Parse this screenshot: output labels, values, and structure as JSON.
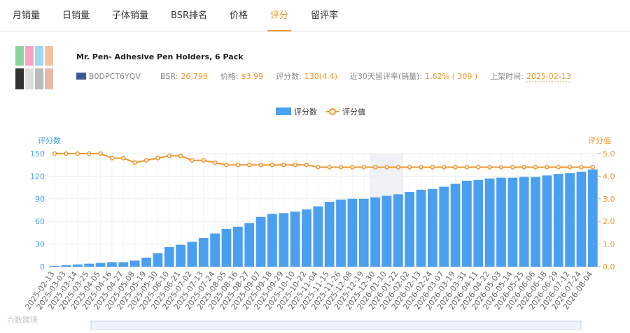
{
  "tabs": [
    "月销量",
    "日销量",
    "子体销量",
    "BSR排名",
    "价格",
    "评分",
    "留评率"
  ],
  "active_tab": 5,
  "product": {
    "title": "Mr. Pen- Adhesive Pen Holders, 6 Pack",
    "asin": "B0DPCT6YQV",
    "fields": [
      {
        "label": "BSR:",
        "value": "26,798"
      },
      {
        "label": "价格:",
        "value": "$3.99"
      },
      {
        "label": "评分数:",
        "value": "130(4.4)"
      },
      {
        "label": "近30天留评率(销量):",
        "value": "1.62% ( 309 )"
      },
      {
        "label": "上架时间:",
        "value": "2025-02-13"
      }
    ]
  },
  "watermark": "六数跨境",
  "chart_data": {
    "type": "bar-line",
    "ylabel": "评分数",
    "y2label": "评分值",
    "ylim": [
      0,
      150
    ],
    "yticks": [
      0,
      30,
      60,
      90,
      120,
      150
    ],
    "y2lim": [
      0,
      5
    ],
    "y2ticks": [
      {
        "value": 0,
        "label": "0.0"
      },
      {
        "value": 1,
        "label": "1.0"
      },
      {
        "value": 2,
        "label": "2.0"
      },
      {
        "value": 3,
        "label": "3.0"
      },
      {
        "value": 4,
        "label": "4.0"
      },
      {
        "value": 5,
        "label": "5.0"
      }
    ],
    "grid": true,
    "categories": [
      "2025-02-13",
      "2025-03-03",
      "2025-03-14",
      "2025-03-25",
      "2025-04-05",
      "2025-04-16",
      "2025-04-27",
      "2025-05-08",
      "2025-05-19",
      "2025-05-30",
      "2025-06-10",
      "2025-06-21",
      "2025-07-02",
      "2025-07-13",
      "2025-07-24",
      "2025-08-05",
      "2025-08-16",
      "2025-08-27",
      "2025-09-07",
      "2025-09-18",
      "2025-09-29",
      "2025-10-10",
      "2025-10-22",
      "2025-11-04",
      "2025-11-15",
      "2025-11-26",
      "2025-12-08",
      "2025-12-19",
      "2025-12-30",
      "2026-01-10",
      "2026-01-22",
      "2026-02-02",
      "2026-02-13",
      "2026-02-24",
      "2026-03-07",
      "2026-03-19",
      "2026-03-31",
      "2026-04-11",
      "2026-04-22",
      "2026-05-03",
      "2026-05-14",
      "2026-05-25",
      "2026-06-06",
      "2026-06-18",
      "2026-06-29",
      "2026-07-12",
      "2026-07-24",
      "2026-08-04"
    ],
    "series": [
      {
        "name": "评分数",
        "color": "#4a9ff0",
        "kind": "bar",
        "values": [
          1,
          2,
          3,
          4,
          5,
          6,
          6,
          8,
          12,
          18,
          26,
          29,
          33,
          38,
          44,
          50,
          53,
          58,
          66,
          70,
          71,
          73,
          76,
          80,
          86,
          89,
          90,
          90,
          92,
          94,
          96,
          99,
          102,
          103,
          106,
          110,
          114,
          115,
          117,
          118,
          118,
          119,
          119,
          121,
          123,
          124,
          126,
          129
        ]
      },
      {
        "name": "评分值",
        "color": "#f0962e",
        "kind": "line",
        "axis": "y2",
        "values": [
          5.0,
          5.0,
          5.0,
          5.0,
          5.0,
          4.8,
          4.8,
          4.6,
          4.7,
          4.8,
          4.9,
          4.9,
          4.7,
          4.7,
          4.6,
          4.5,
          4.5,
          4.5,
          4.5,
          4.5,
          4.5,
          4.5,
          4.5,
          4.4,
          4.4,
          4.4,
          4.4,
          4.4,
          4.4,
          4.4,
          4.4,
          4.4,
          4.4,
          4.4,
          4.4,
          4.4,
          4.4,
          4.4,
          4.4,
          4.4,
          4.4,
          4.4,
          4.4,
          4.4,
          4.4,
          4.4,
          4.4,
          4.4
        ]
      }
    ]
  }
}
